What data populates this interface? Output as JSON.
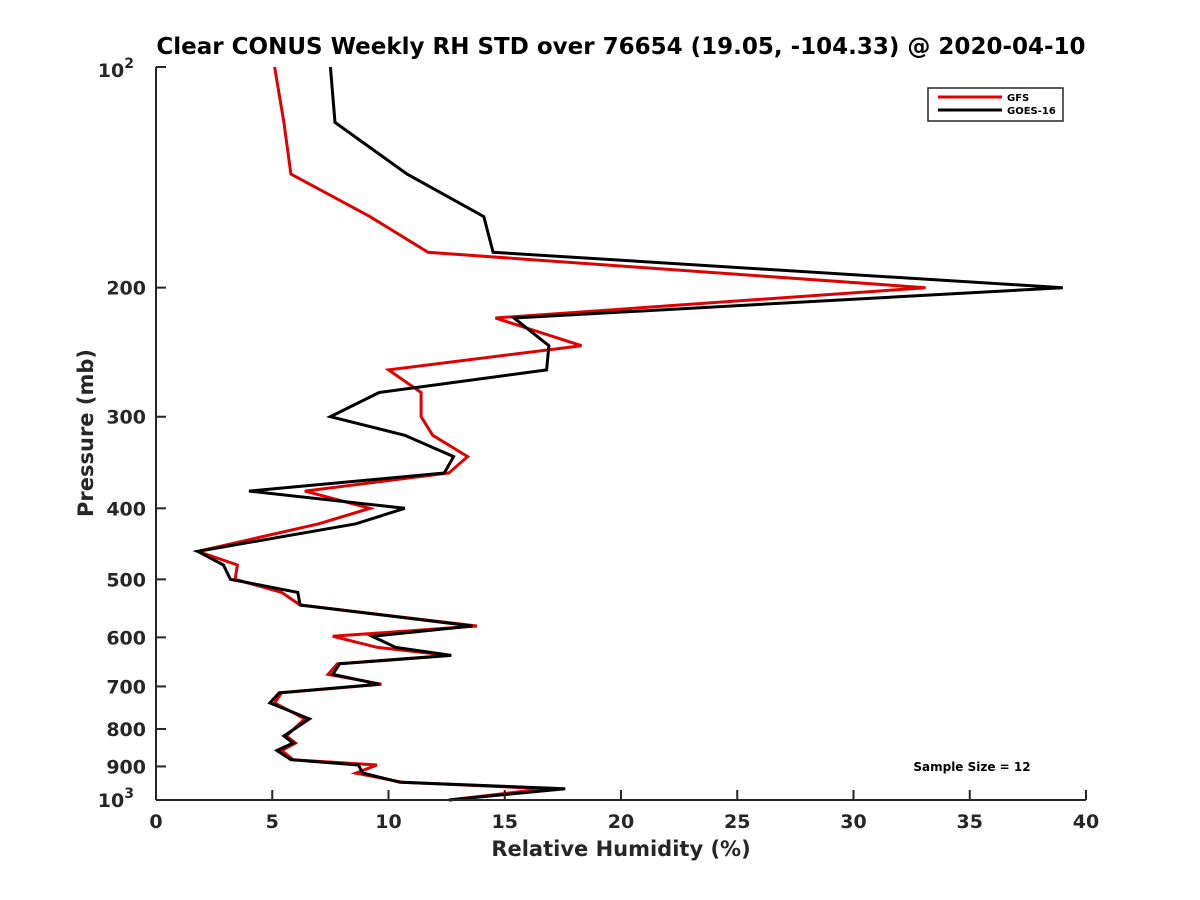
{
  "chart_data": {
    "type": "line",
    "title": "Clear CONUS Weekly RH STD over 76654 (19.05, -104.33) @ 2020-04-10",
    "xlabel": "Relative Humidity (%)",
    "ylabel": "Pressure (mb)",
    "xlim": [
      0,
      40
    ],
    "ylim": [
      100,
      1000
    ],
    "y_scale": "log",
    "y_reversed": true,
    "grid": false,
    "x_ticks": [
      "0",
      "5",
      "10",
      "15",
      "20",
      "25",
      "30",
      "35",
      "40"
    ],
    "x_tick_values": [
      0,
      5,
      10,
      15,
      20,
      25,
      30,
      35,
      40
    ],
    "y_ticks": [
      {
        "value": 100,
        "label": "10",
        "sup": "2"
      },
      {
        "value": 200,
        "label": "200",
        "sup": ""
      },
      {
        "value": 300,
        "label": "300",
        "sup": ""
      },
      {
        "value": 400,
        "label": "400",
        "sup": ""
      },
      {
        "value": 500,
        "label": "500",
        "sup": ""
      },
      {
        "value": 600,
        "label": "600",
        "sup": ""
      },
      {
        "value": 700,
        "label": "700",
        "sup": ""
      },
      {
        "value": 800,
        "label": "800",
        "sup": ""
      },
      {
        "value": 900,
        "label": "900",
        "sup": ""
      },
      {
        "value": 1000,
        "label": "10",
        "sup": "3"
      }
    ],
    "legend": {
      "position": "top-right"
    },
    "annotation": "Sample Size = 12",
    "pressure": [
      100,
      119,
      140,
      160,
      179,
      200,
      220,
      240,
      259,
      278,
      300,
      318,
      340,
      358,
      379,
      400,
      420,
      458,
      478,
      500,
      521,
      542,
      579,
      598,
      619,
      635,
      652,
      674,
      695,
      714,
      737,
      775,
      818,
      836,
      856,
      881,
      896,
      919,
      946,
      965,
      1000
    ],
    "series": [
      {
        "name": "GFS",
        "color": "#e00000",
        "values": [
          5.1,
          5.5,
          5.8,
          9.2,
          11.7,
          33.1,
          14.6,
          18.3,
          10.0,
          11.4,
          11.4,
          11.9,
          13.4,
          12.6,
          6.4,
          9.2,
          7.0,
          1.8,
          3.5,
          3.4,
          5.4,
          6.2,
          13.8,
          7.6,
          9.5,
          12.6,
          7.8,
          7.4,
          9.7,
          5.4,
          5.1,
          6.4,
          5.6,
          6.0,
          5.4,
          5.9,
          9.5,
          8.6,
          10.6,
          16.8,
          12.6
        ]
      },
      {
        "name": "GOES-16",
        "color": "#000000",
        "values": [
          7.5,
          7.7,
          10.8,
          14.1,
          14.5,
          39.0,
          15.4,
          16.9,
          16.8,
          9.6,
          7.5,
          10.7,
          12.8,
          12.4,
          4.0,
          10.7,
          8.6,
          1.8,
          2.9,
          3.2,
          6.1,
          6.2,
          13.6,
          9.3,
          10.3,
          12.7,
          7.9,
          7.6,
          9.6,
          5.3,
          4.9,
          6.6,
          5.5,
          5.9,
          5.2,
          5.8,
          8.7,
          8.9,
          10.5,
          17.6,
          12.6
        ]
      }
    ]
  }
}
